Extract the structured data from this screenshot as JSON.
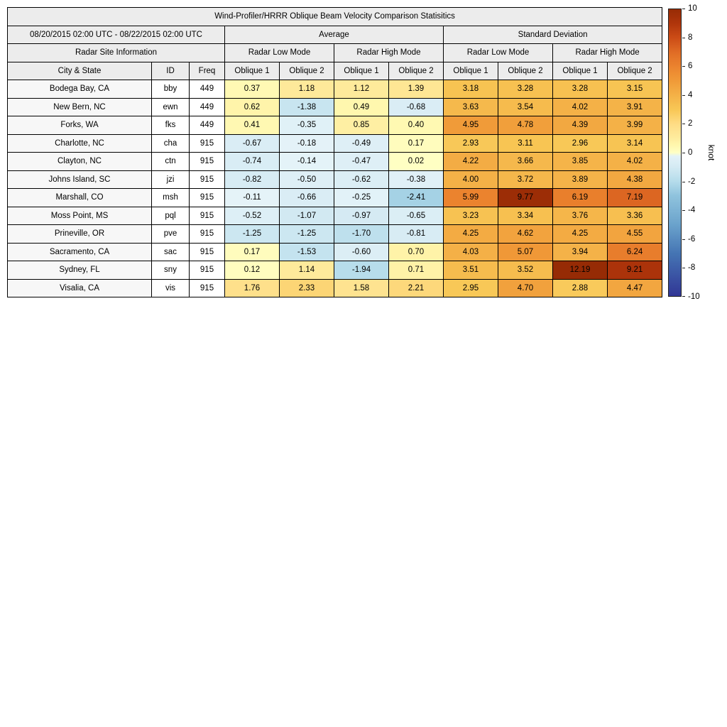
{
  "table": {
    "title": "Wind-Profiler/HRRR Oblique Beam Velocity Comparison Statisitics",
    "date_range": "08/20/2015 02:00 UTC - 08/22/2015 02:00 UTC",
    "groups": {
      "average": "Average",
      "std": "Standard Deviation"
    },
    "site_info": "Radar Site Information",
    "modes": {
      "low": "Radar Low Mode",
      "high": "Radar High Mode"
    },
    "columns": {
      "city": "City & State",
      "id": "ID",
      "freq": "Freq",
      "oblique1": "Oblique 1",
      "oblique2": "Oblique 2"
    }
  },
  "colorbar": {
    "label": "knot",
    "ticks": [
      10,
      8,
      6,
      4,
      2,
      0,
      -2,
      -4,
      -6,
      -8,
      -10
    ],
    "vmin": -10,
    "vmax": 10
  },
  "colormap": {
    "vmin": -10,
    "vmax": 10,
    "positive": [
      [
        0,
        "#ffffc4"
      ],
      [
        0.5,
        "#fff7ae"
      ],
      [
        1,
        "#feec9e"
      ],
      [
        2,
        "#fedc85"
      ],
      [
        3,
        "#f8c755"
      ],
      [
        4,
        "#f4b147"
      ],
      [
        5,
        "#f09a38"
      ],
      [
        6,
        "#eb832e"
      ],
      [
        7,
        "#e06c25"
      ],
      [
        8,
        "#cc4c16"
      ],
      [
        9,
        "#b0350b"
      ],
      [
        10,
        "#962b05"
      ]
    ],
    "negative_abs": [
      [
        0,
        "#e7f4f9"
      ],
      [
        1,
        "#d4eaf3"
      ],
      [
        2,
        "#b5dceb"
      ],
      [
        3,
        "#8fc3dd"
      ],
      [
        5,
        "#6ba3cc"
      ],
      [
        7,
        "#4575b4"
      ],
      [
        10,
        "#313695"
      ]
    ]
  },
  "chart_data": {
    "type": "table",
    "title": "Wind-Profiler/HRRR Oblique Beam Velocity Comparison Statisitics",
    "period": "08/20/2015 02:00 UTC - 08/22/2015 02:00 UTC",
    "value_unit": "knot",
    "value_range": [
      -10,
      10
    ],
    "value_columns": [
      "Average Radar Low Mode Oblique 1",
      "Average Radar Low Mode Oblique 2",
      "Average Radar High Mode Oblique 1",
      "Average Radar High Mode Oblique 2",
      "Standard Deviation Radar Low Mode Oblique 1",
      "Standard Deviation Radar Low Mode Oblique 2",
      "Standard Deviation Radar High Mode Oblique 1",
      "Standard Deviation Radar High Mode Oblique 2"
    ],
    "rows": [
      {
        "city": "Bodega Bay, CA",
        "id": "bby",
        "freq": "449",
        "values": [
          0.37,
          1.18,
          1.12,
          1.39,
          3.18,
          3.28,
          3.28,
          3.15
        ]
      },
      {
        "city": "New Bern, NC",
        "id": "ewn",
        "freq": "449",
        "values": [
          0.62,
          -1.38,
          0.49,
          -0.68,
          3.63,
          3.54,
          4.02,
          3.91
        ]
      },
      {
        "city": "Forks, WA",
        "id": "fks",
        "freq": "449",
        "values": [
          0.41,
          -0.35,
          0.85,
          0.4,
          4.95,
          4.78,
          4.39,
          3.99
        ]
      },
      {
        "city": "Charlotte, NC",
        "id": "cha",
        "freq": "915",
        "values": [
          -0.67,
          -0.18,
          -0.49,
          0.17,
          2.93,
          3.11,
          2.96,
          3.14
        ]
      },
      {
        "city": "Clayton, NC",
        "id": "ctn",
        "freq": "915",
        "values": [
          -0.74,
          -0.14,
          -0.47,
          0.02,
          4.22,
          3.66,
          3.85,
          4.02
        ]
      },
      {
        "city": "Johns Island, SC",
        "id": "jzi",
        "freq": "915",
        "values": [
          -0.82,
          -0.5,
          -0.62,
          -0.38,
          4.0,
          3.72,
          3.89,
          4.38
        ]
      },
      {
        "city": "Marshall, CO",
        "id": "msh",
        "freq": "915",
        "values": [
          -0.11,
          -0.66,
          -0.25,
          -2.41,
          5.99,
          9.77,
          6.19,
          7.19
        ]
      },
      {
        "city": "Moss Point, MS",
        "id": "pql",
        "freq": "915",
        "values": [
          -0.52,
          -1.07,
          -0.97,
          -0.65,
          3.23,
          3.34,
          3.76,
          3.36
        ]
      },
      {
        "city": "Prineville, OR",
        "id": "pve",
        "freq": "915",
        "values": [
          -1.25,
          -1.25,
          -1.7,
          -0.81,
          4.25,
          4.62,
          4.25,
          4.55
        ]
      },
      {
        "city": "Sacramento, CA",
        "id": "sac",
        "freq": "915",
        "values": [
          0.17,
          -1.53,
          -0.6,
          0.7,
          4.03,
          5.07,
          3.94,
          6.24
        ]
      },
      {
        "city": "Sydney, FL",
        "id": "sny",
        "freq": "915",
        "values": [
          0.12,
          1.14,
          -1.94,
          0.71,
          3.51,
          3.52,
          12.19,
          9.21
        ]
      },
      {
        "city": "Visalia, CA",
        "id": "vis",
        "freq": "915",
        "values": [
          1.76,
          2.33,
          1.58,
          2.21,
          2.95,
          4.7,
          2.88,
          4.47
        ]
      }
    ]
  }
}
